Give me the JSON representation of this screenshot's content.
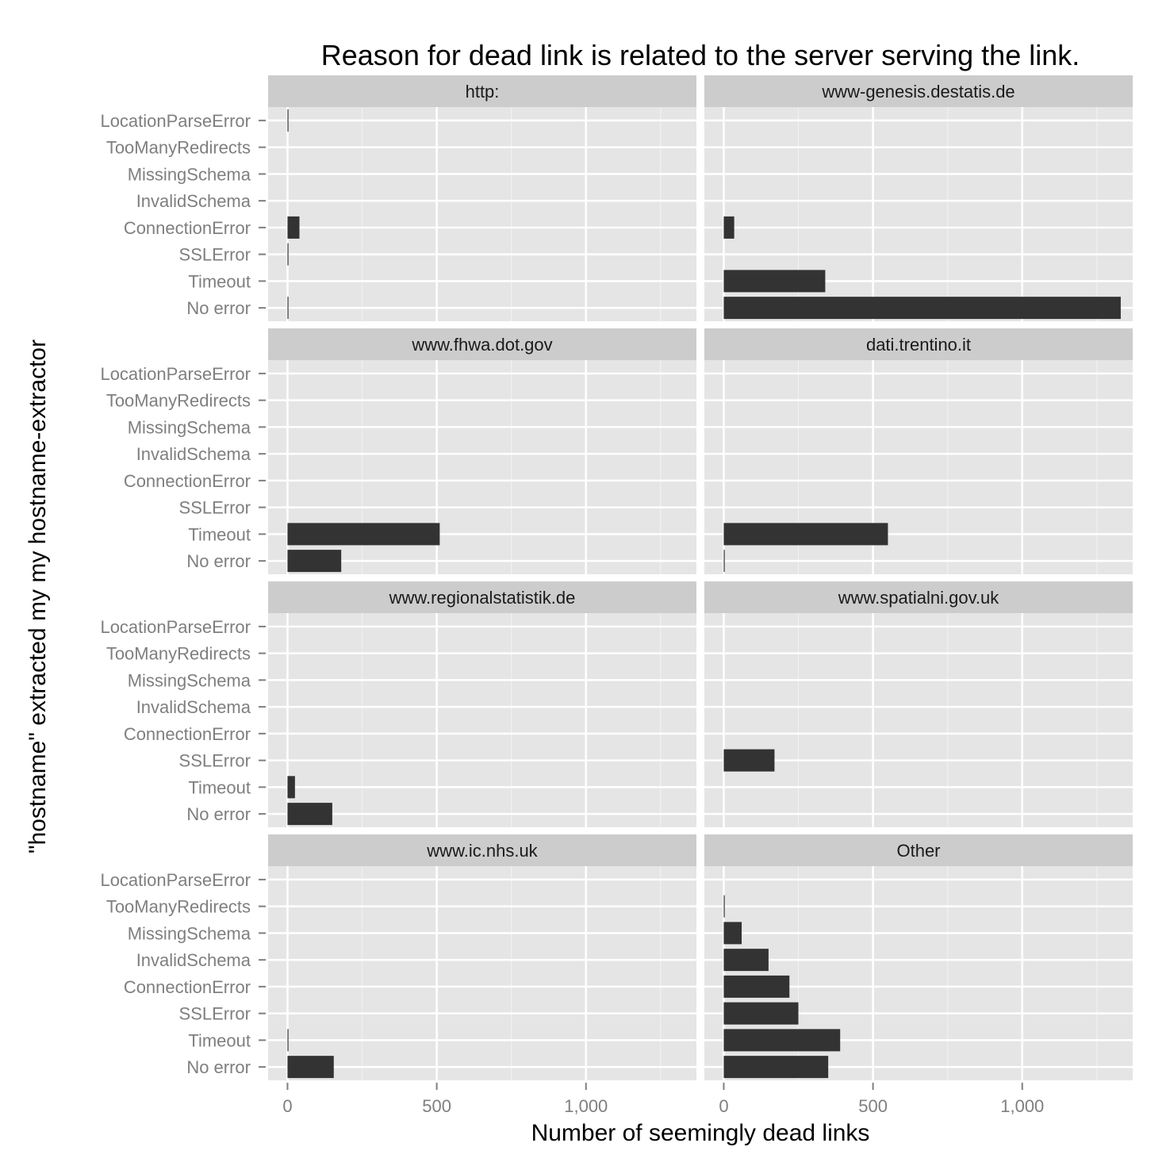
{
  "colors": {
    "panel_background": "#e5e5e5",
    "strip_background": "#cccccc",
    "grid_major": "#ffffff",
    "grid_minor": "#f2f2f2",
    "bar_fill": "#333333",
    "tick_label": "#7f7f7f",
    "tick_mark": "#7f7f7f"
  },
  "chart_data": {
    "type": "bar",
    "orientation": "horizontal",
    "faceted": true,
    "facet_layout": "4 rows x 2 columns",
    "title": "Reason for dead link is related to the server serving the link.",
    "xlabel": "Number of seemingly dead links",
    "ylabel": "\"hostname\" extracted my my hostname-extractor",
    "xlim": [
      -65,
      1370
    ],
    "x_ticks": [
      0,
      500,
      1000
    ],
    "x_tick_labels": [
      "0",
      "500",
      "1,000"
    ],
    "grid": true,
    "categories": [
      "LocationParseError",
      "TooManyRedirects",
      "MissingSchema",
      "InvalidSchema",
      "ConnectionError",
      "SSLError",
      "Timeout",
      "No error"
    ],
    "panels": [
      {
        "name": "http:",
        "values": [
          2,
          0,
          0,
          0,
          40,
          2,
          0,
          2
        ]
      },
      {
        "name": "www-genesis.destatis.de",
        "values": [
          0,
          0,
          0,
          0,
          35,
          0,
          340,
          1330
        ]
      },
      {
        "name": "www.fhwa.dot.gov",
        "values": [
          0,
          0,
          0,
          0,
          0,
          0,
          510,
          180
        ]
      },
      {
        "name": "dati.trentino.it",
        "values": [
          0,
          0,
          0,
          0,
          0,
          0,
          550,
          2
        ]
      },
      {
        "name": "www.regionalstatistik.de",
        "values": [
          0,
          0,
          0,
          0,
          0,
          0,
          25,
          150
        ]
      },
      {
        "name": "www.spatialni.gov.uk",
        "values": [
          0,
          0,
          0,
          0,
          0,
          170,
          0,
          0
        ]
      },
      {
        "name": "www.ic.nhs.uk",
        "values": [
          0,
          0,
          0,
          0,
          0,
          0,
          2,
          155
        ]
      },
      {
        "name": "Other",
        "values": [
          0,
          2,
          60,
          150,
          220,
          250,
          390,
          350
        ]
      }
    ]
  }
}
